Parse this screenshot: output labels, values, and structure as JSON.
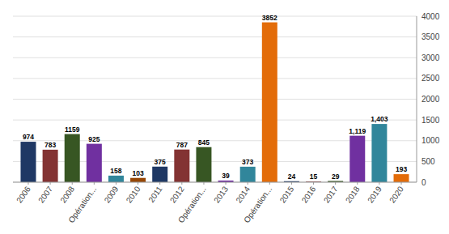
{
  "chart_data": {
    "type": "bar",
    "categories": [
      "2006",
      "2007",
      "2008",
      "Opération...",
      "2009",
      "2010",
      "2011",
      "2012",
      "Opération...",
      "2013",
      "2014",
      "Opération...",
      "2015",
      "2016",
      "2017",
      "2018",
      "2019",
      "2020"
    ],
    "values": [
      974,
      783,
      1159,
      925,
      158,
      103,
      375,
      787,
      845,
      39,
      373,
      3852,
      24,
      15,
      29,
      1119,
      1403,
      193
    ],
    "value_labels": [
      "974",
      "783",
      "1159",
      "925",
      "158",
      "103",
      "375",
      "787",
      "845",
      "39",
      "373",
      "3852",
      "24",
      "15",
      "29",
      "1,119",
      "1,403",
      "193"
    ],
    "colors": [
      "#1F3864",
      "#833333",
      "#375623",
      "#7030A0",
      "#31869B",
      "#974706",
      "#1F3864",
      "#833333",
      "#375623",
      "#7030A0",
      "#31869B",
      "#E36C09",
      "#1F3864",
      "#833333",
      "#375623",
      "#7030A0",
      "#31869B",
      "#E36C09"
    ],
    "ylim": [
      0,
      4000
    ],
    "yticks": [
      0,
      500,
      1000,
      1500,
      2000,
      2500,
      3000,
      3500,
      4000
    ],
    "grid": true,
    "data_labels": true
  }
}
